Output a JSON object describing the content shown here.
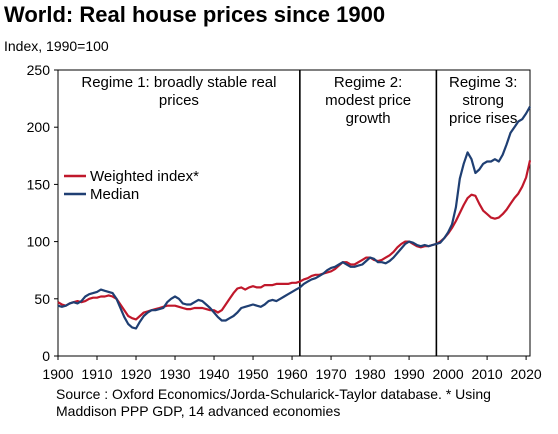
{
  "header": {
    "title": "World: Real house prices since 1900",
    "subtitle": "Index, 1990=100"
  },
  "footer": {
    "source_line1": "Source : Oxford Economics/Jorda-Schularick-Taylor database.  * Using",
    "source_line2": "Maddison PPP GDP, 14 advanced economies"
  },
  "colors": {
    "weighted": "#c0182b",
    "median": "#1f3f73",
    "divider": "#000000"
  },
  "chart_data": {
    "type": "line",
    "title": "World: Real house prices since 1900",
    "ylabel": "Index, 1990=100",
    "xlabel": "",
    "xlim": [
      1900,
      2021
    ],
    "ylim": [
      0,
      250
    ],
    "x_ticks": [
      "1900",
      "1910",
      "1920",
      "1930",
      "1940",
      "1950",
      "1960",
      "1970",
      "1980",
      "1990",
      "2000",
      "2010",
      "2020"
    ],
    "y_ticks": [
      "0",
      "50",
      "100",
      "150",
      "200",
      "250"
    ],
    "legend": {
      "placement": "left-middle",
      "entries": [
        "Weighted index*",
        "Median"
      ]
    },
    "regimes": [
      {
        "lines": [
          "Regime 1: broadly stable real",
          "prices"
        ],
        "start": 1900,
        "end": 1962
      },
      {
        "lines": [
          "Regime 2:",
          "modest price",
          "growth"
        ],
        "start": 1962,
        "end": 1997
      },
      {
        "lines": [
          "Regime 3:",
          "strong",
          "price rises"
        ],
        "start": 1997,
        "end": 2021
      }
    ],
    "dividers": [
      1962,
      1997
    ],
    "series": [
      {
        "name": "Weighted index*",
        "color": "#c0182b",
        "points": [
          [
            1900,
            47
          ],
          [
            1901,
            45
          ],
          [
            1902,
            44
          ],
          [
            1903,
            46
          ],
          [
            1904,
            47
          ],
          [
            1905,
            48
          ],
          [
            1906,
            47
          ],
          [
            1907,
            48
          ],
          [
            1908,
            50
          ],
          [
            1909,
            51
          ],
          [
            1910,
            51
          ],
          [
            1911,
            52
          ],
          [
            1912,
            52
          ],
          [
            1913,
            53
          ],
          [
            1914,
            52
          ],
          [
            1915,
            50
          ],
          [
            1916,
            45
          ],
          [
            1917,
            40
          ],
          [
            1918,
            35
          ],
          [
            1919,
            33
          ],
          [
            1920,
            32
          ],
          [
            1921,
            35
          ],
          [
            1922,
            38
          ],
          [
            1923,
            39
          ],
          [
            1924,
            40
          ],
          [
            1925,
            41
          ],
          [
            1926,
            42
          ],
          [
            1927,
            43
          ],
          [
            1928,
            44
          ],
          [
            1929,
            44
          ],
          [
            1930,
            44
          ],
          [
            1931,
            43
          ],
          [
            1932,
            42
          ],
          [
            1933,
            41
          ],
          [
            1934,
            41
          ],
          [
            1935,
            42
          ],
          [
            1936,
            42
          ],
          [
            1937,
            42
          ],
          [
            1938,
            41
          ],
          [
            1939,
            40
          ],
          [
            1940,
            40
          ],
          [
            1941,
            38
          ],
          [
            1942,
            40
          ],
          [
            1943,
            45
          ],
          [
            1944,
            50
          ],
          [
            1945,
            55
          ],
          [
            1946,
            59
          ],
          [
            1947,
            60
          ],
          [
            1948,
            58
          ],
          [
            1949,
            60
          ],
          [
            1950,
            61
          ],
          [
            1951,
            60
          ],
          [
            1952,
            60
          ],
          [
            1953,
            62
          ],
          [
            1954,
            62
          ],
          [
            1955,
            62
          ],
          [
            1956,
            63
          ],
          [
            1957,
            63
          ],
          [
            1958,
            63
          ],
          [
            1959,
            63
          ],
          [
            1960,
            64
          ],
          [
            1961,
            64
          ],
          [
            1962,
            65
          ],
          [
            1963,
            67
          ],
          [
            1964,
            68
          ],
          [
            1965,
            70
          ],
          [
            1966,
            71
          ],
          [
            1967,
            71
          ],
          [
            1968,
            72
          ],
          [
            1969,
            73
          ],
          [
            1970,
            74
          ],
          [
            1971,
            76
          ],
          [
            1972,
            79
          ],
          [
            1973,
            82
          ],
          [
            1974,
            82
          ],
          [
            1975,
            80
          ],
          [
            1976,
            80
          ],
          [
            1977,
            82
          ],
          [
            1978,
            84
          ],
          [
            1979,
            86
          ],
          [
            1980,
            86
          ],
          [
            1981,
            84
          ],
          [
            1982,
            83
          ],
          [
            1983,
            84
          ],
          [
            1984,
            86
          ],
          [
            1985,
            88
          ],
          [
            1986,
            91
          ],
          [
            1987,
            95
          ],
          [
            1988,
            98
          ],
          [
            1989,
            100
          ],
          [
            1990,
            100
          ],
          [
            1991,
            98
          ],
          [
            1992,
            96
          ],
          [
            1993,
            95
          ],
          [
            1994,
            96
          ],
          [
            1995,
            96
          ],
          [
            1996,
            97
          ],
          [
            1997,
            98
          ],
          [
            1998,
            100
          ],
          [
            1999,
            103
          ],
          [
            2000,
            107
          ],
          [
            2001,
            112
          ],
          [
            2002,
            118
          ],
          [
            2003,
            125
          ],
          [
            2004,
            132
          ],
          [
            2005,
            138
          ],
          [
            2006,
            141
          ],
          [
            2007,
            140
          ],
          [
            2008,
            133
          ],
          [
            2009,
            127
          ],
          [
            2010,
            124
          ],
          [
            2011,
            121
          ],
          [
            2012,
            120
          ],
          [
            2013,
            121
          ],
          [
            2014,
            124
          ],
          [
            2015,
            128
          ],
          [
            2016,
            133
          ],
          [
            2017,
            138
          ],
          [
            2018,
            142
          ],
          [
            2019,
            148
          ],
          [
            2020,
            156
          ],
          [
            2021,
            171
          ]
        ]
      },
      {
        "name": "Median",
        "color": "#1f3f73",
        "points": [
          [
            1900,
            44
          ],
          [
            1901,
            43
          ],
          [
            1902,
            44
          ],
          [
            1903,
            46
          ],
          [
            1904,
            47
          ],
          [
            1905,
            46
          ],
          [
            1906,
            48
          ],
          [
            1907,
            52
          ],
          [
            1908,
            54
          ],
          [
            1909,
            55
          ],
          [
            1910,
            56
          ],
          [
            1911,
            58
          ],
          [
            1912,
            57
          ],
          [
            1913,
            56
          ],
          [
            1914,
            55
          ],
          [
            1915,
            50
          ],
          [
            1916,
            42
          ],
          [
            1917,
            34
          ],
          [
            1918,
            28
          ],
          [
            1919,
            25
          ],
          [
            1920,
            24
          ],
          [
            1921,
            30
          ],
          [
            1922,
            35
          ],
          [
            1923,
            38
          ],
          [
            1924,
            40
          ],
          [
            1925,
            40
          ],
          [
            1926,
            41
          ],
          [
            1927,
            42
          ],
          [
            1928,
            47
          ],
          [
            1929,
            50
          ],
          [
            1930,
            52
          ],
          [
            1931,
            50
          ],
          [
            1932,
            46
          ],
          [
            1933,
            45
          ],
          [
            1934,
            45
          ],
          [
            1935,
            47
          ],
          [
            1936,
            49
          ],
          [
            1937,
            48
          ],
          [
            1938,
            45
          ],
          [
            1939,
            42
          ],
          [
            1940,
            38
          ],
          [
            1941,
            34
          ],
          [
            1942,
            31
          ],
          [
            1943,
            31
          ],
          [
            1944,
            33
          ],
          [
            1945,
            35
          ],
          [
            1946,
            38
          ],
          [
            1947,
            42
          ],
          [
            1948,
            43
          ],
          [
            1949,
            44
          ],
          [
            1950,
            45
          ],
          [
            1951,
            44
          ],
          [
            1952,
            43
          ],
          [
            1953,
            45
          ],
          [
            1954,
            48
          ],
          [
            1955,
            49
          ],
          [
            1956,
            48
          ],
          [
            1957,
            50
          ],
          [
            1958,
            52
          ],
          [
            1959,
            54
          ],
          [
            1960,
            56
          ],
          [
            1961,
            58
          ],
          [
            1962,
            60
          ],
          [
            1963,
            63
          ],
          [
            1964,
            65
          ],
          [
            1965,
            67
          ],
          [
            1966,
            68
          ],
          [
            1967,
            70
          ],
          [
            1968,
            72
          ],
          [
            1969,
            75
          ],
          [
            1970,
            77
          ],
          [
            1971,
            78
          ],
          [
            1972,
            80
          ],
          [
            1973,
            82
          ],
          [
            1974,
            80
          ],
          [
            1975,
            78
          ],
          [
            1976,
            78
          ],
          [
            1977,
            79
          ],
          [
            1978,
            80
          ],
          [
            1979,
            83
          ],
          [
            1980,
            86
          ],
          [
            1981,
            85
          ],
          [
            1982,
            82
          ],
          [
            1983,
            82
          ],
          [
            1984,
            81
          ],
          [
            1985,
            83
          ],
          [
            1986,
            86
          ],
          [
            1987,
            90
          ],
          [
            1988,
            94
          ],
          [
            1989,
            98
          ],
          [
            1990,
            100
          ],
          [
            1991,
            99
          ],
          [
            1992,
            97
          ],
          [
            1993,
            96
          ],
          [
            1994,
            97
          ],
          [
            1995,
            96
          ],
          [
            1996,
            97
          ],
          [
            1997,
            98
          ],
          [
            1998,
            99
          ],
          [
            1999,
            103
          ],
          [
            2000,
            108
          ],
          [
            2001,
            115
          ],
          [
            2002,
            130
          ],
          [
            2003,
            155
          ],
          [
            2004,
            168
          ],
          [
            2005,
            178
          ],
          [
            2006,
            172
          ],
          [
            2007,
            160
          ],
          [
            2008,
            163
          ],
          [
            2009,
            168
          ],
          [
            2010,
            170
          ],
          [
            2011,
            170
          ],
          [
            2012,
            172
          ],
          [
            2013,
            170
          ],
          [
            2014,
            176
          ],
          [
            2015,
            185
          ],
          [
            2016,
            195
          ],
          [
            2017,
            200
          ],
          [
            2018,
            205
          ],
          [
            2019,
            207
          ],
          [
            2020,
            212
          ],
          [
            2021,
            218
          ]
        ]
      }
    ]
  }
}
